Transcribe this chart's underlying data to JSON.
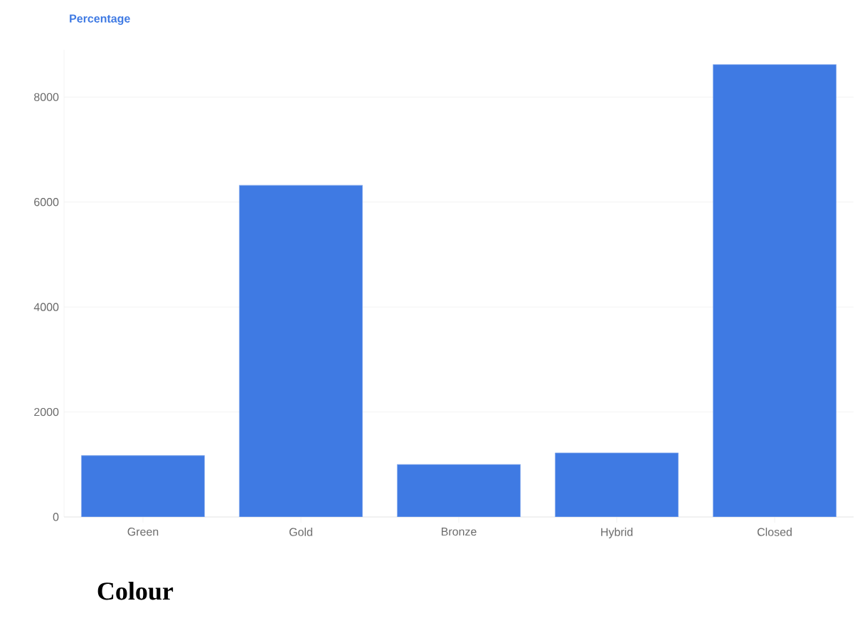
{
  "chart_data": {
    "type": "bar",
    "ylabel": "Percentage",
    "xlabel": "Colour",
    "categories": [
      "Green",
      "Gold",
      "Bronze",
      "Hybrid",
      "Closed"
    ],
    "values": [
      1170,
      6320,
      1000,
      1220,
      8620
    ],
    "color": "#3f7ae3",
    "ylim": [
      0,
      8900
    ],
    "yticks": [
      0,
      2000,
      4000,
      6000,
      8000
    ],
    "grid": "y"
  }
}
